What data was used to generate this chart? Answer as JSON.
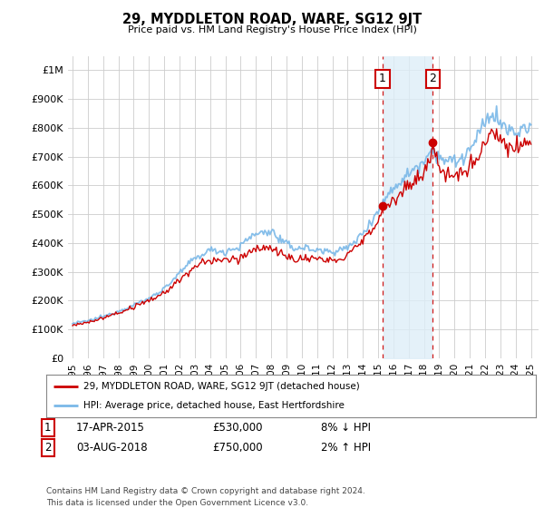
{
  "title": "29, MYDDLETON ROAD, WARE, SG12 9JT",
  "subtitle": "Price paid vs. HM Land Registry's House Price Index (HPI)",
  "ylim": [
    0,
    1050000
  ],
  "yticks": [
    0,
    100000,
    200000,
    300000,
    400000,
    500000,
    600000,
    700000,
    800000,
    900000,
    1000000
  ],
  "ytick_labels": [
    "£0",
    "£100K",
    "£200K",
    "£300K",
    "£400K",
    "£500K",
    "£600K",
    "£700K",
    "£800K",
    "£900K",
    "£1M"
  ],
  "hpi_color": "#7ab8e8",
  "price_color": "#cc0000",
  "shade_color": "#deeef8",
  "purchase1_year": 2015.29,
  "purchase1_price": 530000,
  "purchase2_year": 2018.58,
  "purchase2_price": 750000,
  "legend_house": "29, MYDDLETON ROAD, WARE, SG12 9JT (detached house)",
  "legend_hpi": "HPI: Average price, detached house, East Hertfordshire",
  "footer": "Contains HM Land Registry data © Crown copyright and database right 2024.\nThis data is licensed under the Open Government Licence v3.0.",
  "background_color": "#ffffff",
  "grid_color": "#cccccc",
  "xmin": 1995,
  "xmax": 2025
}
